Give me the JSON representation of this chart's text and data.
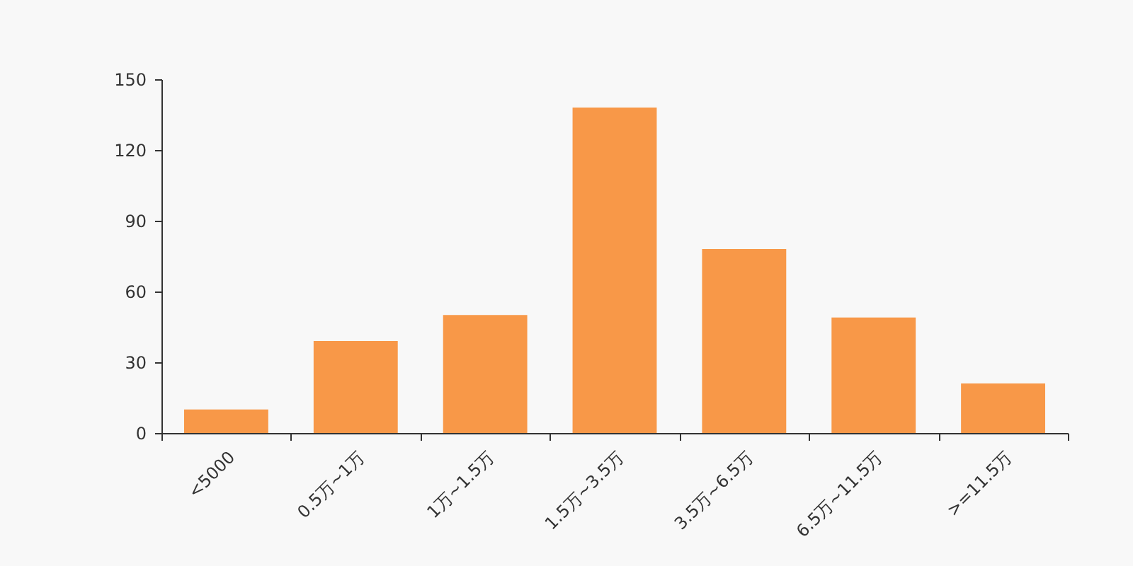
{
  "chart_data": {
    "type": "bar",
    "categories": [
      "<5000",
      "0.5万~1万",
      "1万~1.5万",
      "1.5万~3.5万",
      "3.5万~6.5万",
      "6.5万~11.5万",
      ">=11.5万"
    ],
    "values": [
      10,
      39,
      50,
      138,
      78,
      49,
      21
    ],
    "color": "#f89848",
    "ylim": [
      0,
      150
    ],
    "yticks": [
      0,
      30,
      60,
      90,
      120,
      150
    ],
    "grid": false
  }
}
